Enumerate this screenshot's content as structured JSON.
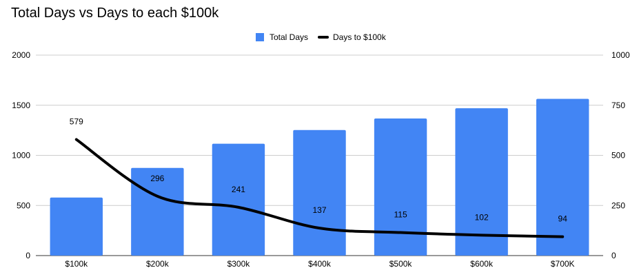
{
  "chart_data": {
    "type": "bar",
    "title": "Total Days vs Days to each $100k",
    "categories": [
      "$100k",
      "$200k",
      "$300k",
      "$400k",
      "$500k",
      "$600k",
      "$700K"
    ],
    "series": [
      {
        "name": "Total Days",
        "type": "bar",
        "axis": "left",
        "color": "#4285f4",
        "values": [
          579,
          875,
          1116,
          1253,
          1368,
          1470,
          1564
        ]
      },
      {
        "name": "Days to $100k",
        "type": "line",
        "axis": "right",
        "color": "#000000",
        "values": [
          579,
          296,
          241,
          137,
          115,
          102,
          94
        ],
        "data_labels": [
          "579",
          "296",
          "241",
          "137",
          "115",
          "102",
          "94"
        ]
      }
    ],
    "ylim_left": [
      0,
      2000
    ],
    "yticks_left": [
      "0",
      "500",
      "1000",
      "1500",
      "2000"
    ],
    "ylim_right": [
      0,
      1000
    ],
    "yticks_right": [
      "0",
      "250",
      "500",
      "750",
      "1000"
    ],
    "grid": true,
    "legend_position": "top-center"
  }
}
